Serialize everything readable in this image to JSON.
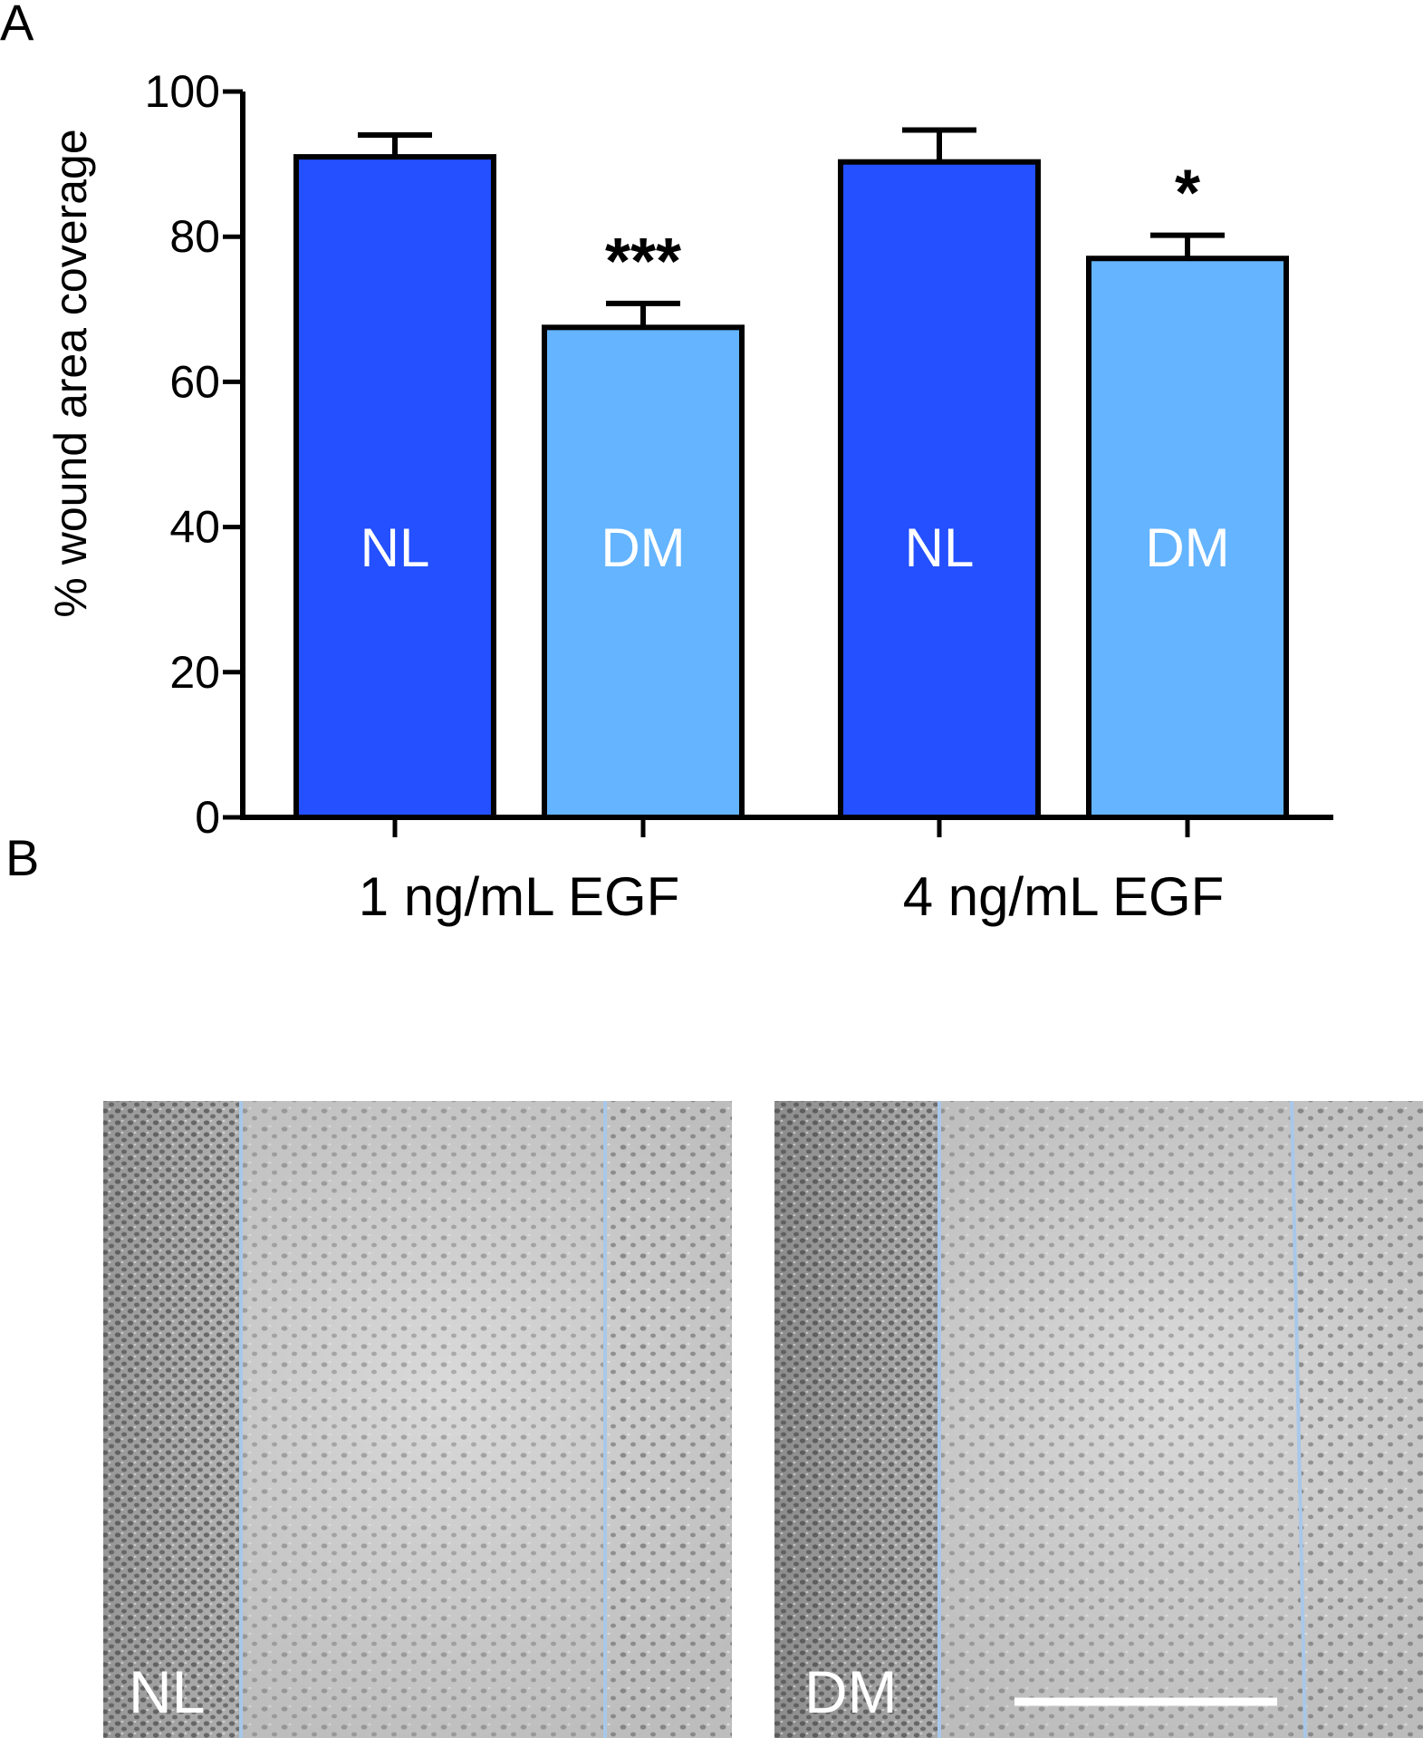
{
  "panels": {
    "a_label": "A",
    "b_label": "B"
  },
  "chart_data": {
    "type": "bar",
    "ylabel": "% wound area coverage",
    "ylim": [
      0,
      100
    ],
    "yticks": [
      0,
      20,
      40,
      60,
      80,
      100
    ],
    "groups": [
      "1 ng/mL EGF",
      "4 ng/mL EGF"
    ],
    "bars": [
      {
        "group": "1 ng/mL EGF",
        "label": "NL",
        "value": 91,
        "error": 3,
        "significance": "",
        "color": "#2450ff"
      },
      {
        "group": "1 ng/mL EGF",
        "label": "DM",
        "value": 67.5,
        "error": 3.3,
        "significance": "***",
        "color": "#64b4ff"
      },
      {
        "group": "4 ng/mL EGF",
        "label": "NL",
        "value": 90.3,
        "error": 4.4,
        "significance": "",
        "color": "#2450ff"
      },
      {
        "group": "4 ng/mL EGF",
        "label": "DM",
        "value": 77,
        "error": 3.2,
        "significance": "*",
        "color": "#64b4ff"
      }
    ],
    "grid": false,
    "legend": "none"
  },
  "micrographs": [
    {
      "label": "NL",
      "wound_edge_color": "#a8c8ea"
    },
    {
      "label": "DM",
      "wound_edge_color": "#a8c8ea",
      "scale_bar": true
    }
  ]
}
